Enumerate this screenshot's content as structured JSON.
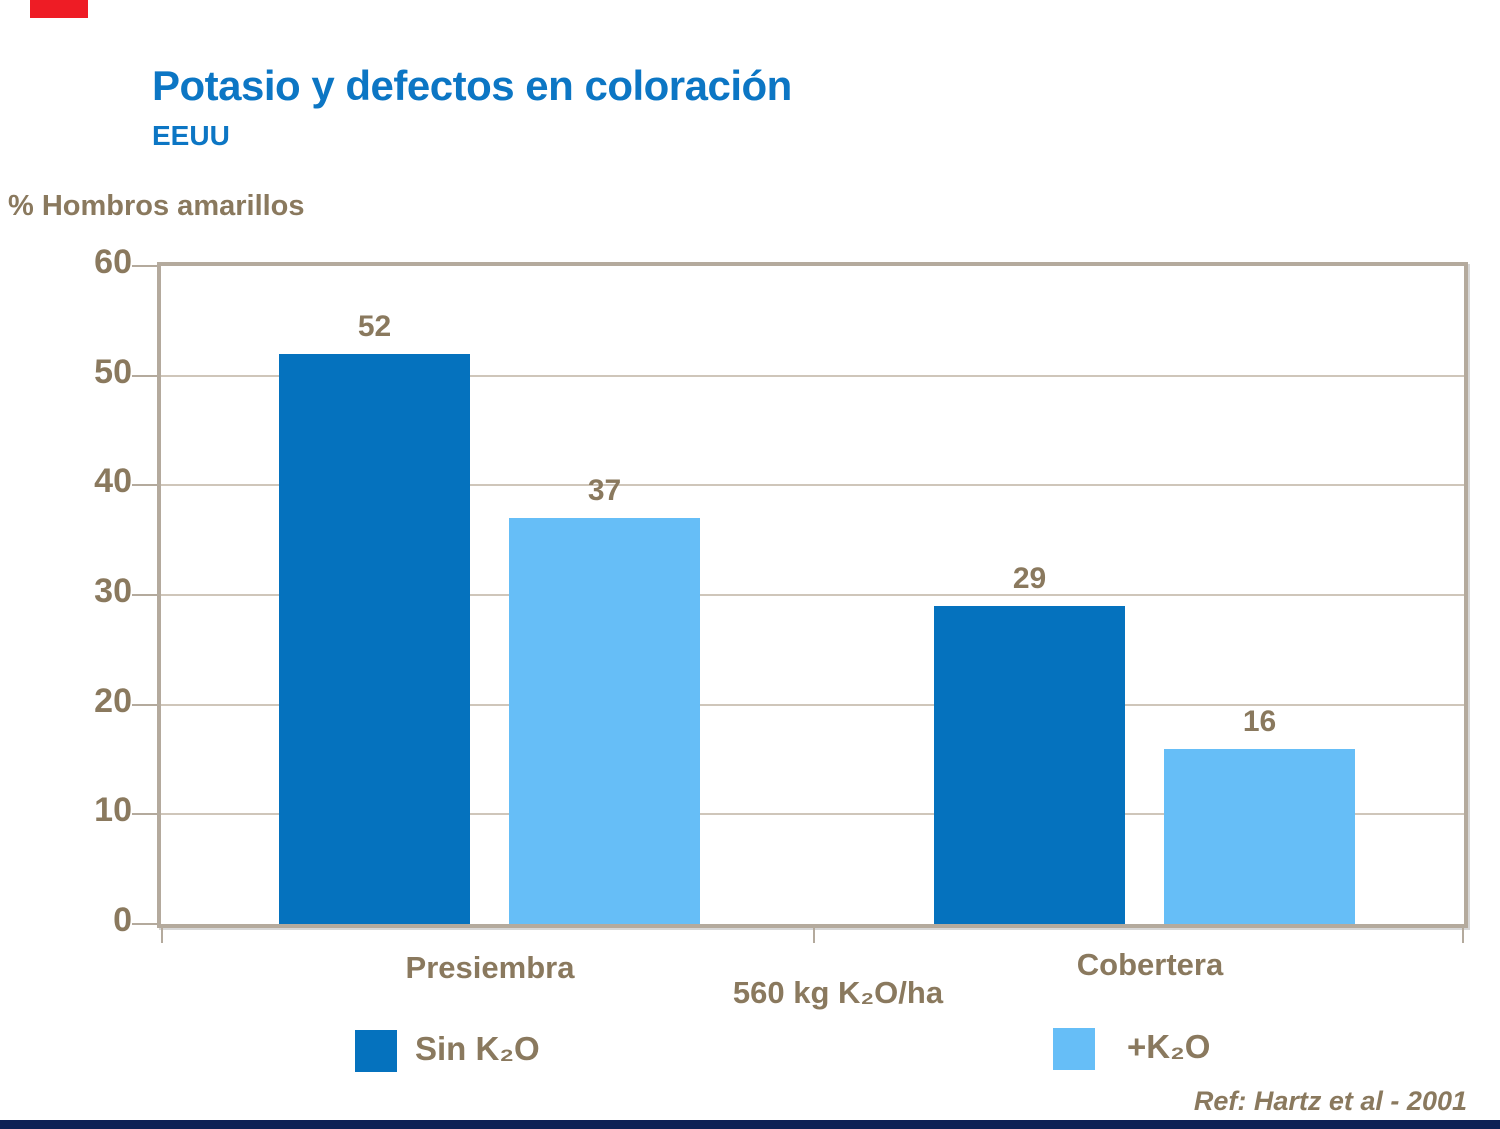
{
  "slide": {
    "title": "Potasio y defectos en coloración",
    "subtitle": "EEUU",
    "footer_ref": "Ref: Hartz et al - 2001"
  },
  "colors": {
    "title_blue": "#0c76c4",
    "text_brown": "#8a795e",
    "series_dark_blue": "#0572be",
    "series_light_blue": "#66bef7",
    "frame_tan": "#b4aa9d",
    "gridline": "#cfc6ba",
    "accent_red": "#ee1c25",
    "footer_navy": "#0e2155"
  },
  "chart_data": {
    "type": "bar",
    "title": "Potasio y defectos en coloración",
    "ylabel": "% Hombros amarillos",
    "xlabel": "",
    "categories": [
      "Presiembra",
      "Cobertera"
    ],
    "center_axis_label": "560 kg K₂O/ha",
    "series": [
      {
        "name": "Sin K₂O",
        "values": [
          52,
          29
        ],
        "color": "#0572be"
      },
      {
        "name": "+K₂O",
        "values": [
          37,
          16
        ],
        "color": "#66bef7"
      }
    ],
    "ylim": [
      0,
      60
    ],
    "yticks": [
      0,
      10,
      20,
      30,
      40,
      50,
      60
    ],
    "grid": true,
    "legend_position": "bottom"
  }
}
